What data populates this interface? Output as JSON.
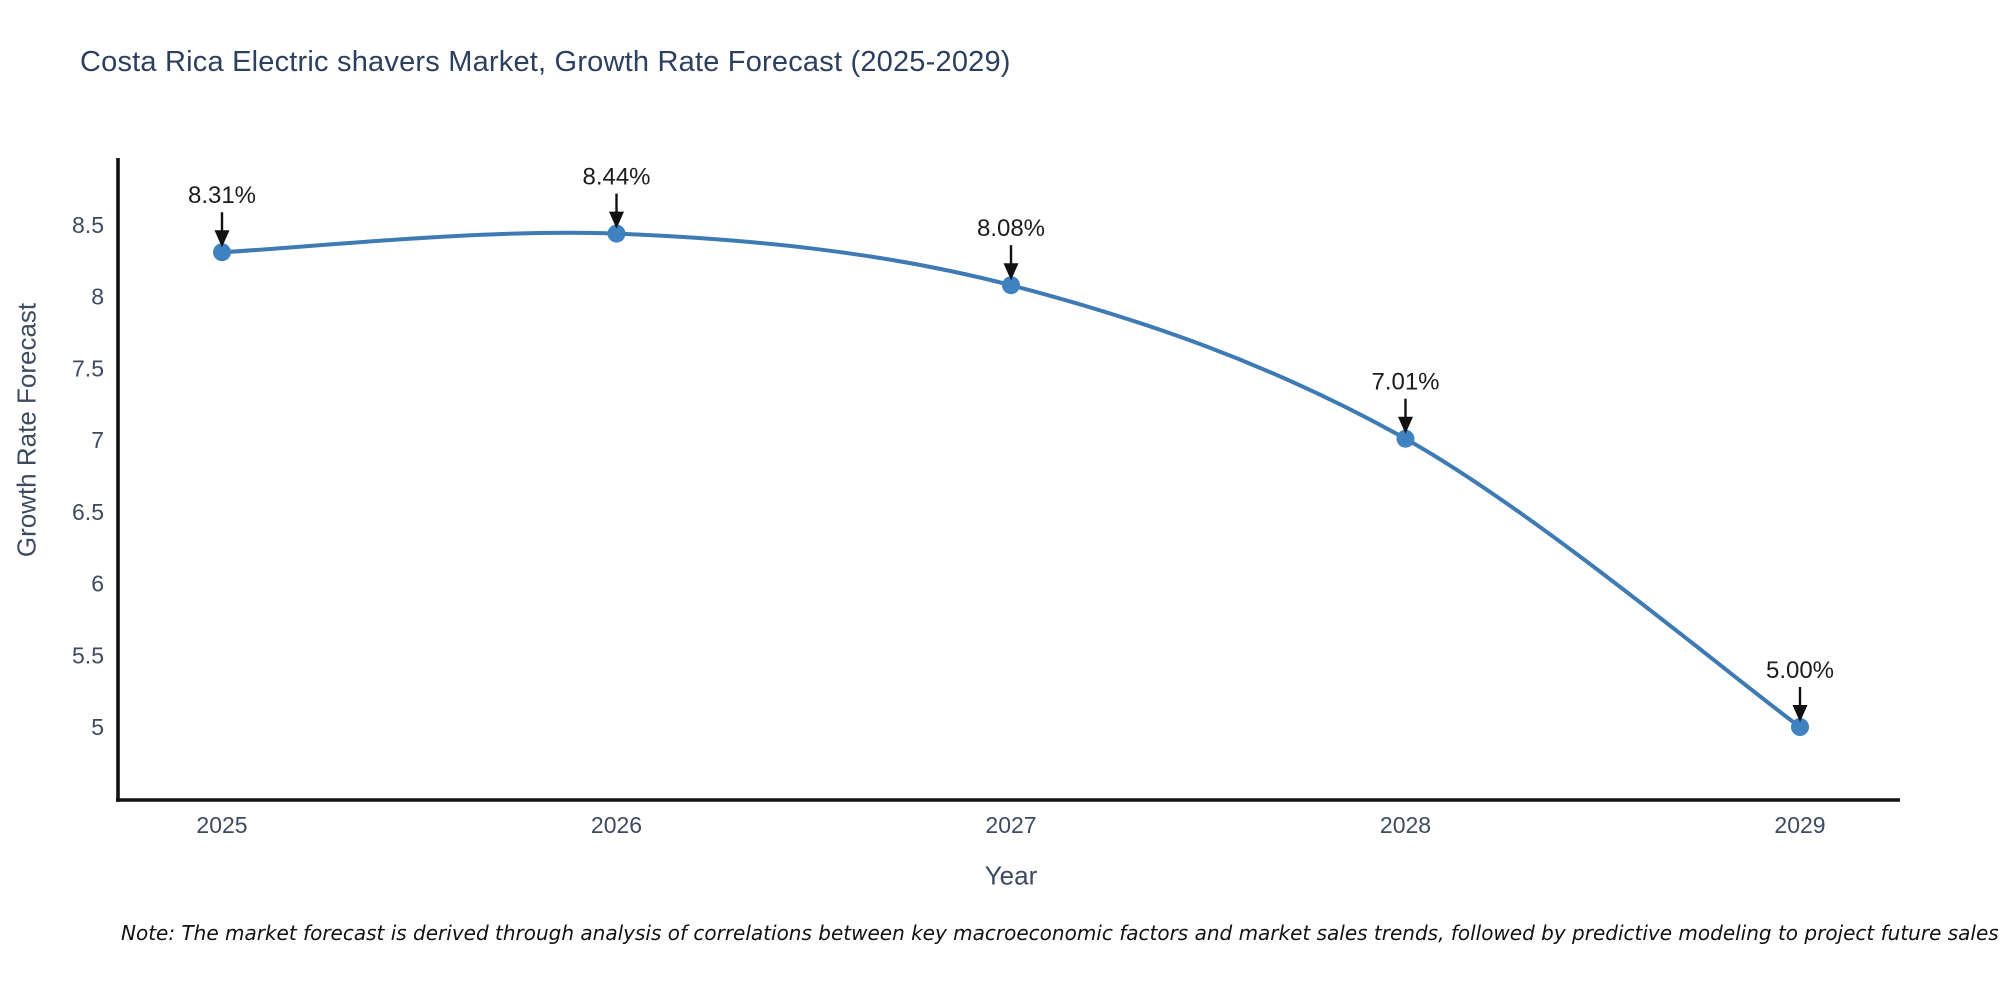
{
  "title": "Costa Rica Electric shavers Market, Growth Rate Forecast (2025-2029)",
  "note": "Note: The market forecast is derived through analysis of correlations between key macroeconomic factors and market sales trends, followed by predictive modeling to project future sales",
  "chart_data": {
    "type": "line",
    "title": "Costa Rica Electric shavers Market, Growth Rate Forecast (2025-2029)",
    "x": [
      "2025",
      "2026",
      "2027",
      "2028",
      "2029"
    ],
    "series": [
      {
        "name": "Growth Rate Forecast",
        "values": [
          8.31,
          8.44,
          8.08,
          7.01,
          5.0
        ]
      }
    ],
    "point_labels": [
      "8.31%",
      "8.44%",
      "8.08%",
      "7.01%",
      "5.00%"
    ],
    "xlabel": "Year",
    "ylabel": "Growth Rate Forecast",
    "yticks": [
      5,
      5.5,
      6,
      6.5,
      7,
      7.5,
      8,
      8.5
    ],
    "ylim": [
      4.49,
      8.95
    ],
    "grid": false,
    "legend": "none",
    "line_shape": "spline",
    "colors": {
      "line": "#3e7ab4",
      "marker": "#3f82c0",
      "axis_line": "#111111",
      "tick_text": "#3d4a5f",
      "annotation_text": "#1c1c1c",
      "annotation_arrow": "#111111",
      "title_text": "#2d3f5e"
    }
  }
}
